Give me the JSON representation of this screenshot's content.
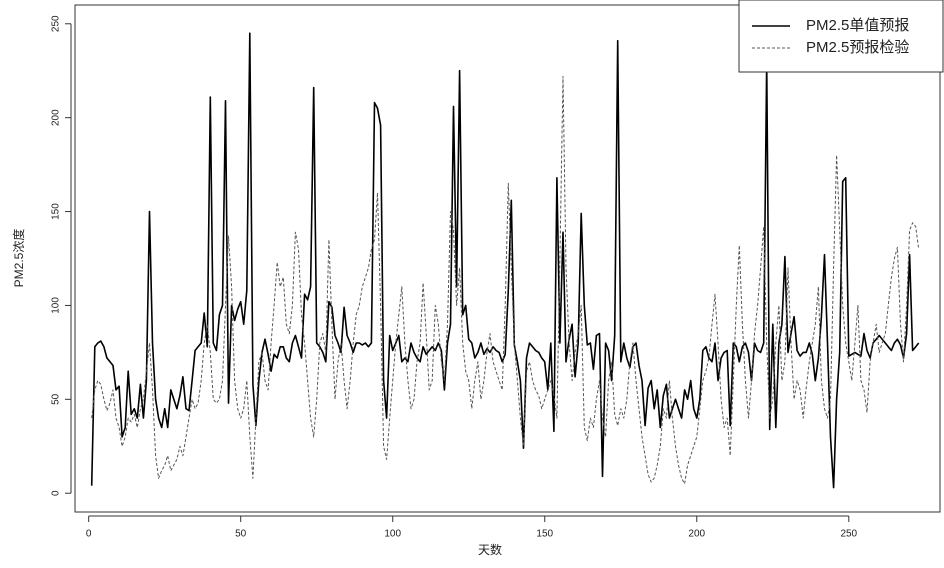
{
  "chart_data": {
    "type": "line",
    "xlabel": "天数",
    "ylabel": "PM2.5浓度",
    "xlim": [
      -4.5,
      280
    ],
    "ylim": [
      -10,
      260
    ],
    "xticks": [
      0,
      50,
      100,
      150,
      200,
      250
    ],
    "yticks": [
      0,
      50,
      100,
      150,
      200,
      250
    ],
    "legend": "top-right",
    "x": [
      1,
      2,
      3,
      4,
      5,
      6,
      7,
      8,
      9,
      10,
      11,
      12,
      13,
      14,
      15,
      16,
      17,
      18,
      19,
      20,
      21,
      22,
      23,
      24,
      25,
      26,
      27,
      28,
      29,
      30,
      31,
      32,
      33,
      34,
      35,
      36,
      37,
      38,
      39,
      40,
      41,
      42,
      43,
      44,
      45,
      46,
      47,
      48,
      49,
      50,
      51,
      52,
      53,
      54,
      55,
      56,
      57,
      58,
      59,
      60,
      61,
      62,
      63,
      64,
      65,
      66,
      67,
      68,
      69,
      70,
      71,
      72,
      73,
      74,
      75,
      76,
      77,
      78,
      79,
      80,
      81,
      82,
      83,
      84,
      85,
      86,
      87,
      88,
      89,
      90,
      91,
      92,
      93,
      94,
      95,
      96,
      97,
      98,
      99,
      100,
      101,
      102,
      103,
      104,
      105,
      106,
      107,
      108,
      109,
      110,
      111,
      112,
      113,
      114,
      115,
      116,
      117,
      118,
      119,
      120,
      121,
      122,
      123,
      124,
      125,
      126,
      127,
      128,
      129,
      130,
      131,
      132,
      133,
      134,
      135,
      136,
      137,
      138,
      139,
      140,
      141,
      142,
      143,
      144,
      145,
      146,
      147,
      148,
      149,
      150,
      151,
      152,
      153,
      154,
      155,
      156,
      157,
      158,
      159,
      160,
      161,
      162,
      163,
      164,
      165,
      166,
      167,
      168,
      169,
      170,
      171,
      172,
      173,
      174,
      175,
      176,
      177,
      178,
      179,
      180,
      181,
      182,
      183,
      184,
      185,
      186,
      187,
      188,
      189,
      190,
      191,
      192,
      193,
      194,
      195,
      196,
      197,
      198,
      199,
      200,
      201,
      202,
      203,
      204,
      205,
      206,
      207,
      208,
      209,
      210,
      211,
      212,
      213,
      214,
      215,
      216,
      217,
      218,
      219,
      220,
      221,
      222,
      223,
      224,
      225,
      226,
      227,
      228,
      229,
      230,
      231,
      232,
      233,
      234,
      235,
      236,
      237,
      238,
      239,
      240,
      241,
      242,
      243,
      244,
      245,
      246,
      247,
      248,
      249,
      250,
      251,
      252,
      253,
      254,
      255,
      256,
      257,
      258,
      259,
      260,
      261,
      262,
      263,
      264,
      265,
      266,
      267,
      268,
      269,
      270,
      271,
      272,
      273
    ],
    "series": [
      {
        "name": "PM2.5单值预报",
        "color": "#000000",
        "dash": "solid",
        "values": [
          4,
          78,
          80,
          81,
          78,
          72,
          70,
          68,
          55,
          57,
          30,
          35,
          65,
          42,
          45,
          40,
          58,
          40,
          60,
          150,
          80,
          50,
          40,
          35,
          45,
          35,
          55,
          50,
          45,
          52,
          62,
          45,
          44,
          60,
          76,
          78,
          80,
          96,
          78,
          211,
          80,
          76,
          95,
          100,
          209,
          48,
          100,
          92,
          98,
          102,
          90,
          108,
          245,
          58,
          36,
          60,
          75,
          82,
          74,
          65,
          74,
          72,
          78,
          78,
          72,
          70,
          80,
          84,
          78,
          72,
          106,
          103,
          110,
          216,
          80,
          78,
          75,
          70,
          102,
          99,
          84,
          80,
          75,
          99,
          84,
          80,
          75,
          80,
          80,
          79,
          80,
          78,
          80,
          208,
          205,
          196,
          60,
          40,
          84,
          76,
          80,
          84,
          70,
          72,
          70,
          80,
          75,
          72,
          70,
          78,
          74,
          76,
          78,
          76,
          80,
          76,
          55,
          80,
          90,
          206,
          110,
          225,
          95,
          100,
          82,
          80,
          72,
          75,
          80,
          74,
          77,
          75,
          78,
          76,
          75,
          70,
          74,
          108,
          156,
          79,
          70,
          60,
          24,
          72,
          80,
          78,
          76,
          75,
          72,
          70,
          55,
          80,
          33,
          168,
          80,
          139,
          70,
          82,
          90,
          62,
          80,
          149,
          100,
          79,
          80,
          66,
          84,
          85,
          9,
          80,
          76,
          60,
          84,
          241,
          70,
          80,
          72,
          67,
          78,
          80,
          68,
          60,
          36,
          56,
          60,
          45,
          55,
          35,
          52,
          58,
          40,
          45,
          50,
          45,
          40,
          55,
          50,
          60,
          45,
          40,
          50,
          76,
          78,
          72,
          70,
          80,
          60,
          72,
          75,
          76,
          36,
          80,
          78,
          70,
          78,
          80,
          75,
          60,
          80,
          76,
          75,
          80,
          230,
          34,
          90,
          35,
          80,
          90,
          126,
          75,
          85,
          94,
          76,
          73,
          75,
          75,
          80,
          74,
          60,
          72,
          94,
          127,
          80,
          30,
          3,
          50,
          75,
          166,
          168,
          73,
          74,
          75,
          74,
          73,
          85,
          76,
          72,
          80,
          82,
          84,
          82,
          80,
          78,
          76,
          80,
          82,
          79,
          72,
          85,
          127,
          76,
          78,
          80
        ]
      },
      {
        "name": "PM2.5预报检验",
        "color": "#555555",
        "dash": "dashed",
        "values": [
          40,
          55,
          60,
          58,
          50,
          44,
          48,
          55,
          40,
          35,
          25,
          30,
          40,
          38,
          42,
          35,
          45,
          50,
          65,
          80,
          55,
          20,
          8,
          12,
          15,
          20,
          12,
          15,
          18,
          25,
          20,
          30,
          40,
          50,
          45,
          48,
          60,
          80,
          90,
          75,
          50,
          48,
          50,
          60,
          100,
          137,
          110,
          60,
          45,
          40,
          45,
          60,
          30,
          8,
          40,
          70,
          75,
          60,
          55,
          80,
          100,
          123,
          110,
          115,
          90,
          85,
          100,
          139,
          130,
          95,
          80,
          60,
          40,
          30,
          50,
          80,
          85,
          75,
          135,
          90,
          50,
          70,
          80,
          60,
          45,
          60,
          80,
          95,
          100,
          110,
          115,
          120,
          130,
          135,
          160,
          100,
          25,
          18,
          40,
          60,
          80,
          95,
          110,
          80,
          60,
          45,
          50,
          70,
          80,
          112,
          85,
          55,
          60,
          100,
          90,
          70,
          60,
          90,
          150,
          140,
          100,
          120,
          80,
          65,
          60,
          45,
          60,
          70,
          50,
          60,
          75,
          85,
          70,
          65,
          60,
          55,
          100,
          165,
          120,
          80,
          60,
          40,
          25,
          65,
          70,
          60,
          55,
          52,
          45,
          50,
          55,
          60,
          52,
          40,
          125,
          222,
          120,
          80,
          60,
          75,
          85,
          100,
          35,
          28,
          40,
          35,
          50,
          60,
          40,
          30,
          60,
          70,
          42,
          36,
          45,
          40,
          50,
          70,
          80,
          60,
          45,
          30,
          20,
          10,
          6,
          8,
          15,
          25,
          45,
          40,
          60,
          40,
          25,
          15,
          8,
          5,
          15,
          20,
          25,
          30,
          45,
          60,
          65,
          72,
          90,
          106,
          80,
          50,
          35,
          40,
          20,
          60,
          100,
          132,
          90,
          60,
          40,
          60,
          85,
          100,
          120,
          142,
          80,
          40,
          50,
          80,
          100,
          60,
          70,
          120,
          80,
          50,
          60,
          55,
          40,
          56,
          70,
          80,
          90,
          110,
          60,
          45,
          40,
          50,
          120,
          180,
          140,
          100,
          80,
          70,
          60,
          80,
          100,
          60,
          55,
          43,
          70,
          80,
          90,
          75,
          80,
          85,
          100,
          115,
          125,
          131,
          90,
          70,
          100,
          140,
          144,
          142,
          130
        ]
      }
    ]
  }
}
